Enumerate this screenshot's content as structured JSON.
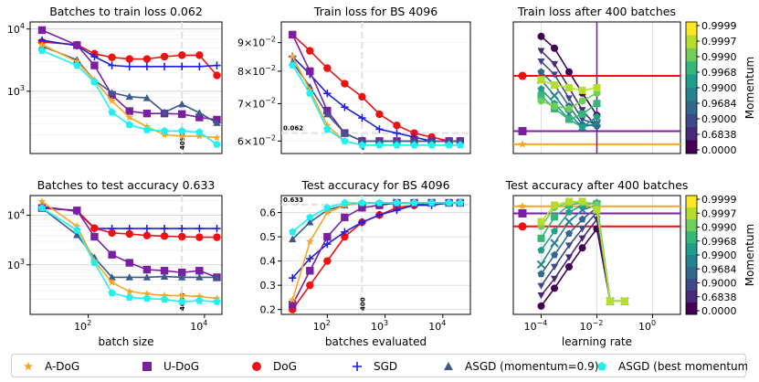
{
  "colors": {
    "adog": "#f5a623",
    "udog": "#7b1fa2",
    "dog": "#ee1111",
    "sgd": "#1f1fe0",
    "asgd09": "#3b5a8a",
    "asgdbest": "#1ff0f0",
    "hline": "#e0e0e0"
  },
  "legend": [
    {
      "key": "adog",
      "label": "A-DoG",
      "marker": "star"
    },
    {
      "key": "udog",
      "label": "U-DoG",
      "marker": "square"
    },
    {
      "key": "dog",
      "label": "DoG",
      "marker": "circle"
    },
    {
      "key": "sgd",
      "label": "SGD",
      "marker": "plus"
    },
    {
      "key": "asgd09",
      "label": "ASGD (momentum=0.9)",
      "marker": "triangle"
    },
    {
      "key": "asgdbest",
      "label": "ASGD (best momentum)",
      "marker": "pentagon"
    }
  ],
  "chart_data": [
    {
      "id": "p1",
      "type": "line",
      "title": "Batches to train loss 0.062",
      "xlabel": "",
      "ylabel": "",
      "xscale": "log",
      "yscale": "log",
      "xlim": [
        10,
        20000
      ],
      "ylim": [
        100,
        13000
      ],
      "xticks": [],
      "yticks": [
        {
          "v": 1000,
          "label": "10",
          "sup": "3"
        },
        {
          "v": 10000,
          "label": "10",
          "sup": "4"
        }
      ],
      "vline": {
        "x": 4096,
        "label": "4096"
      },
      "x": [
        16,
        64,
        128,
        256,
        512,
        1024,
        2048,
        4096,
        8192,
        16384
      ],
      "series": [
        {
          "key": "dog",
          "values": [
            6200,
            5600,
            4000,
            3500,
            3300,
            3300,
            3600,
            3800,
            3800,
            1800
          ]
        },
        {
          "key": "sgd",
          "values": [
            6600,
            5400,
            3600,
            2600,
            2500,
            2500,
            2500,
            2500,
            2500,
            2600
          ]
        },
        {
          "key": "udog",
          "values": [
            9600,
            5500,
            2600,
            870,
            480,
            440,
            440,
            430,
            380,
            350
          ]
        },
        {
          "key": "asgd09",
          "values": [
            5300,
            3200,
            1500,
            950,
            820,
            780,
            460,
            620,
            450,
            310
          ]
        },
        {
          "key": "adog",
          "values": [
            5600,
            3000,
            1500,
            700,
            380,
            270,
            200,
            190,
            190,
            180
          ]
        },
        {
          "key": "asgdbest",
          "values": [
            4500,
            2600,
            1400,
            460,
            290,
            240,
            230,
            230,
            220,
            140
          ]
        }
      ]
    },
    {
      "id": "p2",
      "type": "line",
      "title": "Train loss for BS 4096",
      "xlabel": "",
      "ylabel": "",
      "xscale": "log",
      "yscale": "log",
      "xlim": [
        16,
        30000
      ],
      "ylim": [
        0.057,
        0.098
      ],
      "xticks": [],
      "yticks": [
        {
          "v": 0.06,
          "label": "6×10",
          "sup": "−2"
        },
        {
          "v": 0.07,
          "label": "7×10",
          "sup": "−2"
        },
        {
          "v": 0.08,
          "label": "8×10",
          "sup": "−2"
        },
        {
          "v": 0.09,
          "label": "9×10",
          "sup": "−2"
        }
      ],
      "vline": {
        "x": 400,
        "label": "400"
      },
      "hline": {
        "y": 0.062,
        "label": "0.062"
      },
      "x": [
        25,
        50,
        100,
        200,
        400,
        800,
        1600,
        3200,
        6400,
        12800,
        20000
      ],
      "series": [
        {
          "key": "dog",
          "values": [
            0.093,
            0.087,
            0.081,
            0.076,
            0.072,
            0.067,
            0.064,
            0.062,
            0.061,
            0.06,
            0.06
          ]
        },
        {
          "key": "sgd",
          "values": [
            0.085,
            0.079,
            0.073,
            0.069,
            0.066,
            0.063,
            0.062,
            0.061,
            0.06,
            0.06,
            0.06
          ]
        },
        {
          "key": "udog",
          "values": [
            0.093,
            0.08,
            0.068,
            0.062,
            0.06,
            0.06,
            0.06,
            0.06,
            0.06,
            0.06,
            0.06
          ]
        },
        {
          "key": "asgd09",
          "values": [
            0.083,
            0.075,
            0.067,
            0.062,
            0.06,
            0.06,
            0.06,
            0.06,
            0.06,
            0.06,
            0.06
          ]
        },
        {
          "key": "adog",
          "values": [
            0.085,
            0.074,
            0.064,
            0.06,
            0.059,
            0.059,
            0.059,
            0.059,
            0.059,
            0.059,
            0.059
          ]
        },
        {
          "key": "asgdbest",
          "values": [
            0.082,
            0.073,
            0.063,
            0.06,
            0.059,
            0.059,
            0.059,
            0.059,
            0.059,
            0.059,
            0.059
          ]
        }
      ]
    },
    {
      "id": "p3",
      "type": "scatter",
      "title": "Train loss after 400 batches",
      "xlabel": "",
      "ylabel": "",
      "xscale": "log",
      "yscale": "linear",
      "xlim": [
        1e-05,
        10
      ],
      "ylim": [
        0,
        10
      ],
      "xticks": [],
      "yticks": [],
      "hlines": [
        {
          "key": "dog",
          "y": 5.9
        },
        {
          "key": "udog",
          "y": 1.7
        },
        {
          "key": "adog",
          "y": 0.7
        }
      ],
      "vlines": [
        {
          "key": "udog",
          "x": 0.01
        }
      ],
      "lr": [
        0.0001,
        0.0003,
        0.001,
        0.003,
        0.01
      ],
      "momentum_series": [
        {
          "momentum": 0.0,
          "values": [
            8.9,
            8.0,
            6.2,
            4.6,
            2.9
          ]
        },
        {
          "momentum": 0.6838,
          "values": [
            7.8,
            6.8,
            5.0,
            3.3,
            2.0
          ]
        },
        {
          "momentum": 0.9,
          "values": [
            7.0,
            6.0,
            4.2,
            2.6,
            2.2
          ]
        },
        {
          "momentum": 0.9684,
          "values": [
            6.2,
            5.2,
            3.6,
            2.2,
            2.1
          ]
        },
        {
          "momentum": 0.99,
          "values": [
            5.6,
            4.4,
            3.0,
            2.0,
            2.3
          ]
        },
        {
          "momentum": 0.9968,
          "values": [
            4.9,
            3.8,
            2.6,
            2.0,
            2.8
          ]
        },
        {
          "momentum": 0.999,
          "values": [
            4.4,
            3.4,
            2.6,
            3.0,
            3.8
          ]
        },
        {
          "momentum": 0.9997,
          "values": [
            4.0,
            3.6,
            3.4,
            4.0,
            4.6
          ]
        },
        {
          "momentum": 0.9999,
          "values": [
            5.6,
            5.2,
            5.0,
            4.8,
            5.0
          ]
        }
      ]
    },
    {
      "id": "p4",
      "type": "line",
      "title": "Batches to test accuracy 0.633",
      "xlabel": "batch size",
      "ylabel": "",
      "xscale": "log",
      "yscale": "log",
      "xlim": [
        10,
        20000
      ],
      "ylim": [
        100,
        25000
      ],
      "xticks": [
        {
          "v": 100,
          "label": "10",
          "sup": "2"
        },
        {
          "v": 10000,
          "label": "10",
          "sup": "4"
        }
      ],
      "yticks": [
        {
          "v": 1000,
          "label": "10",
          "sup": "3"
        },
        {
          "v": 10000,
          "label": "10",
          "sup": "4"
        }
      ],
      "vline": {
        "x": 4096,
        "label": "4096"
      },
      "x": [
        16,
        64,
        128,
        256,
        512,
        1024,
        2048,
        4096,
        8192,
        16384
      ],
      "series": [
        {
          "key": "sgd",
          "values": [
            15000,
            12000,
            5400,
            5400,
            5400,
            5400,
            5400,
            5400,
            5400,
            5400
          ]
        },
        {
          "key": "dog",
          "values": [
            14000,
            12500,
            5500,
            4400,
            4200,
            3900,
            3800,
            3700,
            3600,
            3600
          ]
        },
        {
          "key": "udog",
          "values": [
            14000,
            12500,
            3700,
            1600,
            1100,
            800,
            760,
            700,
            760,
            560
          ]
        },
        {
          "key": "asgd09",
          "values": [
            14000,
            4000,
            1400,
            560,
            560,
            560,
            580,
            560,
            560,
            560
          ]
        },
        {
          "key": "adog",
          "values": [
            19000,
            6000,
            1200,
            440,
            290,
            260,
            240,
            240,
            230,
            210
          ]
        },
        {
          "key": "asgdbest",
          "values": [
            14000,
            5000,
            1100,
            270,
            220,
            210,
            200,
            180,
            190,
            180
          ]
        }
      ]
    },
    {
      "id": "p5",
      "type": "line",
      "title": "Test accuracy for BS 4096",
      "xlabel": "batches evaluated",
      "ylabel": "",
      "xscale": "log",
      "yscale": "linear",
      "xlim": [
        16,
        30000
      ],
      "ylim": [
        0.18,
        0.67
      ],
      "xticks": [
        {
          "v": 100,
          "label": "10",
          "sup": "2"
        },
        {
          "v": 1000,
          "label": "10",
          "sup": "3"
        },
        {
          "v": 10000,
          "label": "10",
          "sup": "4"
        }
      ],
      "yticks": [
        {
          "v": 0.2,
          "label": "0.2"
        },
        {
          "v": 0.3,
          "label": "0.3"
        },
        {
          "v": 0.4,
          "label": "0.4"
        },
        {
          "v": 0.5,
          "label": "0.5"
        },
        {
          "v": 0.6,
          "label": "0.6"
        }
      ],
      "vline": {
        "x": 400,
        "label": "400"
      },
      "hline": {
        "y": 0.633,
        "label": "0.633"
      },
      "x": [
        25,
        50,
        100,
        200,
        400,
        800,
        1600,
        3200,
        6400,
        12800,
        20000
      ],
      "series": [
        {
          "key": "dog",
          "values": [
            0.2,
            0.3,
            0.4,
            0.5,
            0.56,
            0.59,
            0.62,
            0.63,
            0.64,
            0.64,
            0.64
          ]
        },
        {
          "key": "sgd",
          "values": [
            0.33,
            0.41,
            0.47,
            0.52,
            0.56,
            0.59,
            0.61,
            0.63,
            0.63,
            0.64,
            0.64
          ]
        },
        {
          "key": "udog",
          "values": [
            0.22,
            0.36,
            0.5,
            0.58,
            0.62,
            0.63,
            0.64,
            0.64,
            0.64,
            0.64,
            0.64
          ]
        },
        {
          "key": "asgd09",
          "values": [
            0.49,
            0.56,
            0.61,
            0.63,
            0.64,
            0.64,
            0.64,
            0.64,
            0.64,
            0.64,
            0.64
          ]
        },
        {
          "key": "adog",
          "values": [
            0.24,
            0.48,
            0.6,
            0.63,
            0.64,
            0.64,
            0.64,
            0.64,
            0.64,
            0.64,
            0.64
          ]
        },
        {
          "key": "asgdbest",
          "values": [
            0.52,
            0.58,
            0.62,
            0.64,
            0.64,
            0.64,
            0.64,
            0.64,
            0.64,
            0.64,
            0.64
          ]
        }
      ]
    },
    {
      "id": "p6",
      "type": "scatter",
      "title": "Test accuracy after 400 batches",
      "xlabel": "learning rate",
      "ylabel": "",
      "xscale": "log",
      "yscale": "linear",
      "xlim": [
        1e-05,
        10
      ],
      "ylim": [
        0,
        10
      ],
      "xticks": [
        {
          "v": 0.0001,
          "label": "10",
          "sup": "−4"
        },
        {
          "v": 0.01,
          "label": "10",
          "sup": "−2"
        },
        {
          "v": 1,
          "label": "10",
          "sup": "0"
        }
      ],
      "yticks": [],
      "hlines": [
        {
          "key": "adog",
          "y": 9.1
        },
        {
          "key": "udog",
          "y": 8.5
        },
        {
          "key": "dog",
          "y": 7.4
        }
      ],
      "vlines": [],
      "lr": [
        0.0001,
        0.0003,
        0.001,
        0.003,
        0.01,
        0.03,
        0.1
      ],
      "momentum_series": [
        {
          "momentum": 0.0,
          "values": [
            0.7,
            2.2,
            4.0,
            5.6,
            7.2,
            1.1,
            1.1
          ]
        },
        {
          "momentum": 0.6838,
          "values": [
            1.6,
            3.0,
            4.8,
            6.4,
            8.0,
            1.1,
            1.1
          ]
        },
        {
          "momentum": 0.9,
          "values": [
            2.4,
            4.0,
            5.8,
            7.2,
            8.6,
            1.1,
            1.1
          ]
        },
        {
          "momentum": 0.9684,
          "values": [
            3.4,
            5.0,
            6.8,
            8.0,
            9.0,
            1.1,
            1.1
          ]
        },
        {
          "momentum": 0.99,
          "values": [
            4.2,
            6.0,
            7.8,
            8.8,
            9.2,
            1.1,
            1.1
          ]
        },
        {
          "momentum": 0.9968,
          "values": [
            5.4,
            7.0,
            8.6,
            9.2,
            9.4,
            1.1,
            1.1
          ]
        },
        {
          "momentum": 0.999,
          "values": [
            6.4,
            8.2,
            9.2,
            9.4,
            9.3,
            1.1,
            1.1
          ]
        },
        {
          "momentum": 0.9997,
          "values": [
            7.4,
            9.0,
            9.4,
            9.5,
            9.2,
            1.1,
            1.1
          ]
        },
        {
          "momentum": 0.9999,
          "values": [
            7.8,
            9.2,
            9.5,
            9.5,
            8.8,
            1.1,
            1.1
          ]
        }
      ]
    }
  ],
  "colorbar": {
    "label": "Momentum",
    "ticks": [
      "0.9999",
      "0.9997",
      "0.9990",
      "0.9968",
      "0.9900",
      "0.9684",
      "0.9000",
      "0.6838",
      "0.0000"
    ],
    "colors": [
      "#fde725",
      "#b5de2b",
      "#6ece58",
      "#35b779",
      "#1f9e89",
      "#26828e",
      "#31688e",
      "#3e4989",
      "#482878",
      "#440154"
    ]
  }
}
